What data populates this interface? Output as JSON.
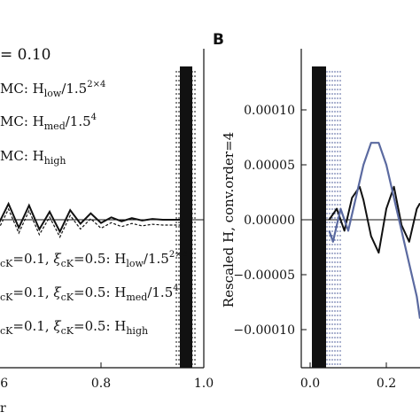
{
  "header_text": "= 0.10",
  "panel_b_label": "B",
  "colors": {
    "black": "#111111",
    "blue": "#5b6aa0"
  },
  "legend_left": {
    "mc_prefix": "MC: H",
    "entries": [
      {
        "sub": "low",
        "suffix": "/1.5",
        "sup": "2×4"
      },
      {
        "sub": "med",
        "suffix": "/1.5",
        "sup": "4"
      },
      {
        "sub": "high",
        "suffix": "",
        "sup": ""
      }
    ],
    "ck_prefix": "cK",
    "ck_middle": "=0.1, ",
    "xi": "ξ",
    "ck_middle2": "=0.5: H",
    "ck_entries": [
      {
        "sub": "low",
        "suffix": "/1.5",
        "sup": "2×4"
      },
      {
        "sub": "med",
        "suffix": "/1.5",
        "sup": "4"
      },
      {
        "sub": "high",
        "suffix": "",
        "sup": ""
      }
    ]
  },
  "x_trailing_label": "r",
  "chart_data": [
    {
      "panel": "A",
      "type": "line",
      "x_ticks": [
        "0.6",
        "0.8",
        "1.0"
      ],
      "xlim": [
        0.5,
        1.0
      ],
      "series": [
        {
          "x": [
            0.5,
            0.52,
            0.54,
            0.56,
            0.58,
            0.6,
            0.62,
            0.64,
            0.66,
            0.68,
            0.7,
            0.72,
            0.74,
            0.76,
            0.78,
            0.8,
            0.82,
            0.84,
            0.86,
            0.88,
            0.9,
            0.92,
            0.94,
            0.96
          ],
          "y": [
            0,
            0,
            0.02,
            -0.03,
            0.05,
            -0.06,
            0.2,
            -0.1,
            0.18,
            -0.12,
            0.1,
            -0.15,
            0.12,
            -0.05,
            0.08,
            -0.04,
            0.03,
            -0.02,
            0.02,
            -0.01,
            0.01,
            0,
            0,
            0
          ]
        }
      ]
    },
    {
      "panel": "B",
      "type": "line",
      "ylabel": "Rescaled H, conv.order=4",
      "x_ticks": [
        "0.0",
        "0.2"
      ],
      "y_ticks": [
        "0.00010",
        "0.00005",
        "0.00000",
        "−0.00005",
        "−0.00010"
      ],
      "xlim": [
        -0.02,
        0.3
      ],
      "ylim": [
        -0.00014,
        0.00014
      ],
      "series": [
        {
          "x": [
            0.05,
            0.07,
            0.09,
            0.11,
            0.13,
            0.14,
            0.16,
            0.18,
            0.2,
            0.22,
            0.24,
            0.26,
            0.28,
            0.3
          ],
          "y": [
            0,
            1e-05,
            -1e-05,
            2e-05,
            3e-05,
            1.8e-05,
            -1.5e-05,
            -3e-05,
            1e-05,
            3e-05,
            -5e-06,
            -2e-05,
            1e-05,
            1.5e-05
          ]
        },
        {
          "x": [
            0.05,
            0.06,
            0.08,
            0.1,
            0.12,
            0.14,
            0.16,
            0.18,
            0.2,
            0.22,
            0.24,
            0.26,
            0.28,
            0.3
          ],
          "y": [
            -1e-05,
            -2e-05,
            1e-05,
            -1e-05,
            2e-05,
            5e-05,
            7e-05,
            7e-05,
            5e-05,
            2e-05,
            -1e-05,
            -4e-05,
            -7e-05,
            -9e-05
          ]
        }
      ]
    }
  ]
}
